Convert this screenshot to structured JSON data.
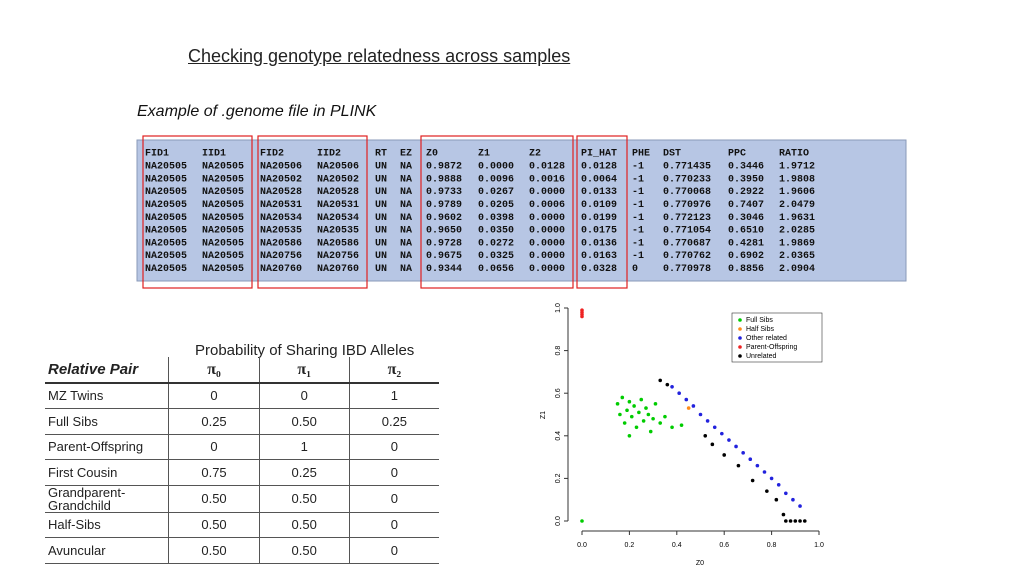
{
  "title": "Checking genotype relatedness across samples",
  "subtitle": "Example of .genome file in PLINK",
  "genome_table": {
    "header": [
      "FID1",
      "IID1",
      "FID2",
      "IID2",
      "RT",
      "EZ",
      "Z0",
      "Z1",
      "Z2",
      "PI_HAT",
      "PHE",
      "DST",
      "PPC",
      "RATIO"
    ],
    "rows": [
      [
        "NA20505",
        "NA20505",
        "NA20506",
        "NA20506",
        "UN",
        "NA",
        "0.9872",
        "0.0000",
        "0.0128",
        "0.0128",
        "-1",
        "0.771435",
        "0.3446",
        "1.9712"
      ],
      [
        "NA20505",
        "NA20505",
        "NA20502",
        "NA20502",
        "UN",
        "NA",
        "0.9888",
        "0.0096",
        "0.0016",
        "0.0064",
        "-1",
        "0.770233",
        "0.3950",
        "1.9808"
      ],
      [
        "NA20505",
        "NA20505",
        "NA20528",
        "NA20528",
        "UN",
        "NA",
        "0.9733",
        "0.0267",
        "0.0000",
        "0.0133",
        "-1",
        "0.770068",
        "0.2922",
        "1.9606"
      ],
      [
        "NA20505",
        "NA20505",
        "NA20531",
        "NA20531",
        "UN",
        "NA",
        "0.9789",
        "0.0205",
        "0.0006",
        "0.0109",
        "-1",
        "0.770976",
        "0.7407",
        "2.0479"
      ],
      [
        "NA20505",
        "NA20505",
        "NA20534",
        "NA20534",
        "UN",
        "NA",
        "0.9602",
        "0.0398",
        "0.0000",
        "0.0199",
        "-1",
        "0.772123",
        "0.3046",
        "1.9631"
      ],
      [
        "NA20505",
        "NA20505",
        "NA20535",
        "NA20535",
        "UN",
        "NA",
        "0.9650",
        "0.0350",
        "0.0000",
        "0.0175",
        "-1",
        "0.771054",
        "0.6510",
        "2.0285"
      ],
      [
        "NA20505",
        "NA20505",
        "NA20586",
        "NA20586",
        "UN",
        "NA",
        "0.9728",
        "0.0272",
        "0.0000",
        "0.0136",
        "-1",
        "0.770687",
        "0.4281",
        "1.9869"
      ],
      [
        "NA20505",
        "NA20505",
        "NA20756",
        "NA20756",
        "UN",
        "NA",
        "0.9675",
        "0.0325",
        "0.0000",
        "0.0163",
        "-1",
        "0.770762",
        "0.6902",
        "2.0365"
      ],
      [
        "NA20505",
        "NA20505",
        "NA20760",
        "NA20760",
        "UN",
        "NA",
        "0.9344",
        "0.0656",
        "0.0000",
        "0.0328",
        "0",
        "0.770978",
        "0.8856",
        "2.0904"
      ]
    ]
  },
  "ibd_table": {
    "caption": "Probability of Sharing IBD Alleles",
    "header": [
      "Relative Pair",
      "π₀",
      "π₁",
      "π₂"
    ],
    "rows": [
      [
        "MZ Twins",
        "0",
        "0",
        "1"
      ],
      [
        "Full Sibs",
        "0.25",
        "0.50",
        "0.25"
      ],
      [
        "Parent-Offspring",
        "0",
        "1",
        "0"
      ],
      [
        "First Cousin",
        "0.75",
        "0.25",
        "0"
      ],
      [
        "Grandparent-Grandchild",
        "0.50",
        "0.50",
        "0"
      ],
      [
        "Half-Sibs",
        "0.50",
        "0.50",
        "0"
      ],
      [
        "Avuncular",
        "0.50",
        "0.50",
        "0"
      ]
    ]
  },
  "chart_data": {
    "type": "scatter",
    "x_label": "Z0",
    "y_label": "Z1",
    "xlim": [
      0,
      1
    ],
    "ylim": [
      0,
      1
    ],
    "xticks": [
      {
        "value": 0,
        "label": "0.0"
      },
      {
        "value": 0.2,
        "label": "0.2"
      },
      {
        "value": 0.4,
        "label": "0.4"
      },
      {
        "value": 0.6,
        "label": "0.6"
      },
      {
        "value": 0.8,
        "label": "0.8"
      },
      {
        "value": 1,
        "label": "1.0"
      }
    ],
    "yticks": [
      {
        "value": 0,
        "label": "0.0"
      },
      {
        "value": 0.2,
        "label": "0.2"
      },
      {
        "value": 0.4,
        "label": "0.4"
      },
      {
        "value": 0.6,
        "label": "0.6"
      },
      {
        "value": 0.8,
        "label": "0.8"
      },
      {
        "value": 1,
        "label": "1.0"
      }
    ],
    "legend": "top-right",
    "series": [
      {
        "name": "Full Sibs",
        "color": "#00cc00",
        "x": [
          0.15,
          0.16,
          0.17,
          0.18,
          0.19,
          0.2,
          0.21,
          0.22,
          0.23,
          0.24,
          0.25,
          0.26,
          0.27,
          0.28,
          0.29,
          0.3,
          0.31,
          0.33,
          0.35,
          0.38,
          0.42,
          0.2,
          0
        ],
        "values": [
          0.55,
          0.5,
          0.58,
          0.46,
          0.52,
          0.56,
          0.49,
          0.54,
          0.44,
          0.51,
          0.57,
          0.47,
          0.53,
          0.5,
          0.42,
          0.48,
          0.55,
          0.46,
          0.49,
          0.44,
          0.45,
          0.4,
          0
        ]
      },
      {
        "name": "Half Sibs",
        "color": "#ff8c1a",
        "x": [
          0.45
        ],
        "values": [
          0.53
        ]
      },
      {
        "name": "Other related",
        "color": "#2222dd",
        "x": [
          0.38,
          0.41,
          0.44,
          0.47,
          0.5,
          0.53,
          0.56,
          0.59,
          0.62,
          0.65,
          0.68,
          0.71,
          0.74,
          0.77,
          0.8,
          0.83,
          0.86,
          0.89,
          0.92
        ],
        "values": [
          0.63,
          0.6,
          0.57,
          0.54,
          0.5,
          0.47,
          0.44,
          0.41,
          0.38,
          0.35,
          0.32,
          0.29,
          0.26,
          0.23,
          0.2,
          0.17,
          0.13,
          0.1,
          0.07
        ]
      },
      {
        "name": "Parent-Offspring",
        "color": "#ee2222",
        "x": [
          0,
          0,
          0,
          0
        ],
        "values": [
          0.96,
          0.97,
          0.98,
          0.99
        ]
      },
      {
        "name": "Unrelated",
        "color": "#000000",
        "x": [
          0.33,
          0.36,
          0.52,
          0.55,
          0.6,
          0.66,
          0.72,
          0.78,
          0.82,
          0.85,
          0.86,
          0.88,
          0.9,
          0.92,
          0.94
        ],
        "values": [
          0.66,
          0.64,
          0.4,
          0.36,
          0.31,
          0.26,
          0.19,
          0.14,
          0.1,
          0.03,
          0,
          0,
          0,
          0,
          0
        ]
      }
    ]
  }
}
